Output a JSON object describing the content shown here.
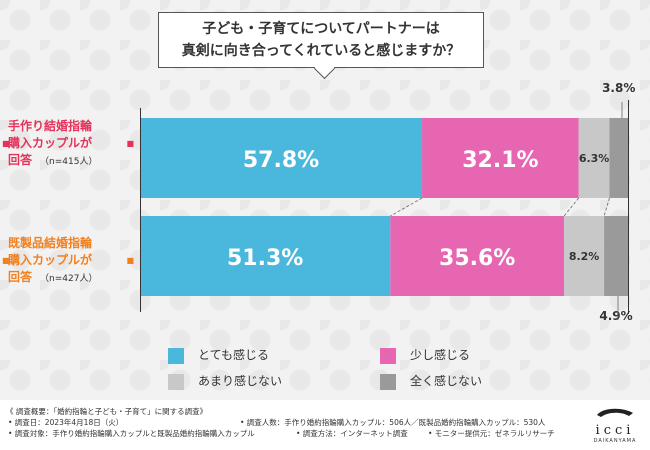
{
  "title": {
    "line1": "子ども・子育てについてパートナーは",
    "line2": "真剣に向き合ってくれていると感じますか？"
  },
  "rows": [
    {
      "label_lines": [
        "手作り結婚指輪",
        "購入カップルが",
        "回答"
      ],
      "n": "（n=415人）",
      "label_color": "#e5325a"
    },
    {
      "label_lines": [
        "既製品結婚指輪",
        "購入カップルが",
        "回答"
      ],
      "n": "（n=427人）",
      "label_color": "#f08020"
    }
  ],
  "chart_data": {
    "type": "bar",
    "orientation": "horizontal-stacked-100",
    "title": "子ども・子育てについてパートナーは真剣に向き合ってくれていると感じますか？",
    "categories": [
      "手作り結婚指輪購入カップルが回答（n=415人）",
      "既製品結婚指輪購入カップルが回答（n=427人）"
    ],
    "series": [
      {
        "name": "とても感じる",
        "color": "#4ab8dd",
        "values": [
          57.8,
          51.3
        ]
      },
      {
        "name": "少し感じる",
        "color": "#e766b2",
        "values": [
          32.1,
          35.6
        ]
      },
      {
        "name": "あまり感じない",
        "color": "#c8c8c8",
        "values": [
          6.3,
          8.2
        ]
      },
      {
        "name": "全く感じない",
        "color": "#9a9a9a",
        "values": [
          3.8,
          4.9
        ]
      }
    ],
    "value_labels": [
      [
        "57.8%",
        "32.1%",
        "6.3%",
        "3.8%"
      ],
      [
        "51.3%",
        "35.6%",
        "8.2%",
        "4.9%"
      ]
    ],
    "xlim": [
      0,
      100
    ]
  },
  "legend": [
    {
      "label": "とても感じる",
      "color": "#4ab8dd"
    },
    {
      "label": "少し感じる",
      "color": "#e766b2"
    },
    {
      "label": "あまり感じない",
      "color": "#c8c8c8"
    },
    {
      "label": "全く感じない",
      "color": "#9a9a9a"
    }
  ],
  "footer": {
    "overview": "《 調査概要：「婚約指輪と子ども・子育て」に関する調査》",
    "date": "• 調査日：2023年4月18日（火）",
    "people": "• 調査人数：手作り婚約指輪購入カップル：506人／既製品婚約指輪購入カップル：530人",
    "target": "• 調査対象：手作り婚約指輪購入カップルと既製品婚約指輪購入カップル",
    "method": "• 調査方法：インターネット調査",
    "provider": "• モニター提供元：ゼネラルリサーチ"
  },
  "logo": {
    "mark": "icci",
    "sub": "DAIKANYAMA"
  }
}
